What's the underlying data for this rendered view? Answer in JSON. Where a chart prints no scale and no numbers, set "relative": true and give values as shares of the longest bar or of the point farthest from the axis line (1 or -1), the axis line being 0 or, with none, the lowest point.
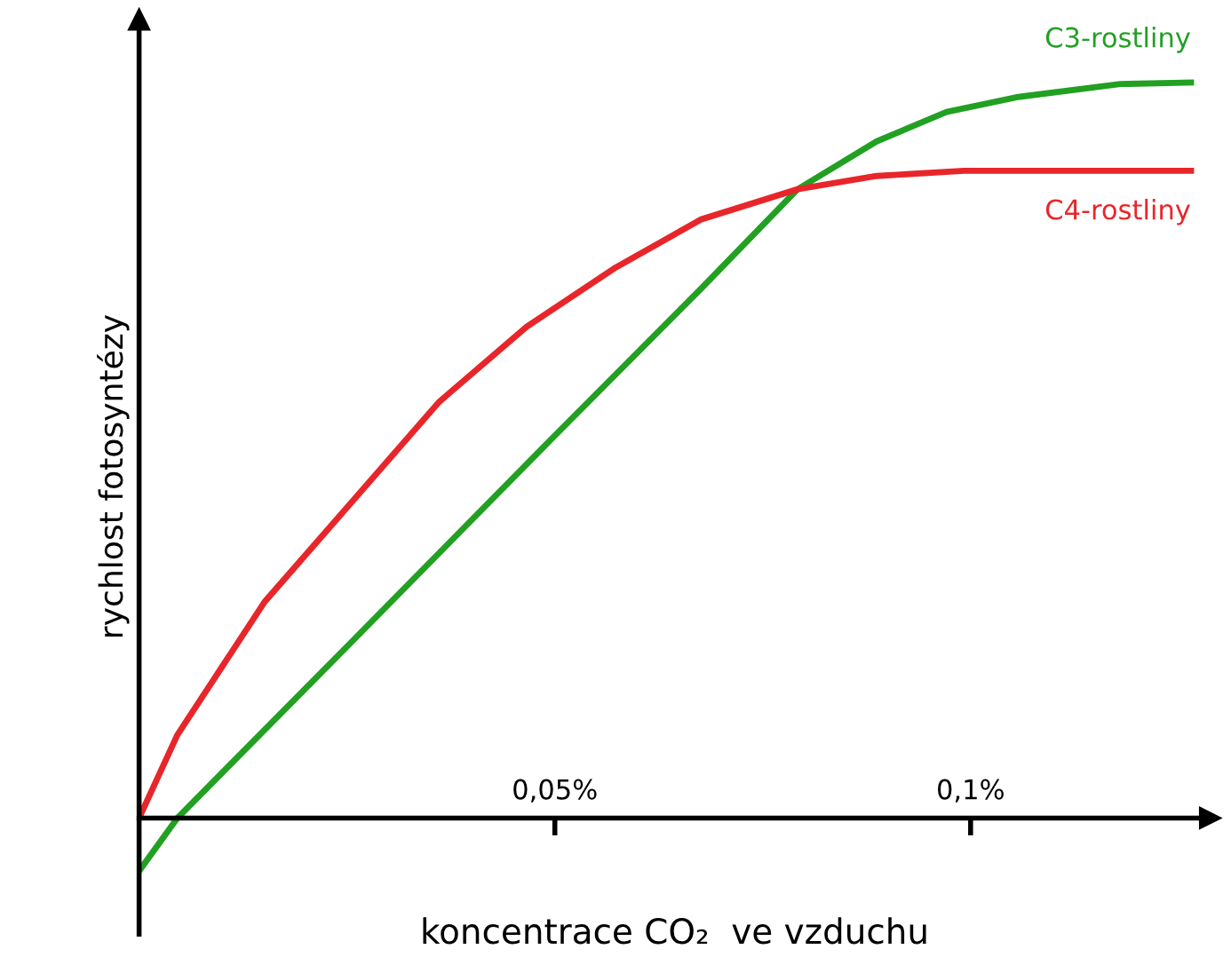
{
  "chart_data": {
    "type": "line",
    "relative": true,
    "ylabel": "rychlost fotosyntézy",
    "xlabel": "koncentrace CO₂  ve vzduchu",
    "xlim": [
      0,
      0.1288
    ],
    "xticks": [
      {
        "value": 0.05,
        "label": "0,05%"
      },
      {
        "value": 0.1,
        "label": "0,1%"
      }
    ],
    "legend": false,
    "grid": false,
    "marker": "none",
    "line_style": "solid",
    "series": [
      {
        "name": "C3-rostliny",
        "color": "#22a022",
        "x": [
          0,
          0.0046,
          0.0256,
          0.05,
          0.0676,
          0.0792,
          0.0887,
          0.0971,
          0.1055,
          0.118,
          0.1265
        ],
        "values": [
          -0.072,
          0,
          0.24,
          0.52,
          0.72,
          0.855,
          0.92,
          0.96,
          0.98,
          0.998,
          1
        ]
      },
      {
        "name": "C4-rostliny",
        "color": "#e8262a",
        "x": [
          0,
          0.0046,
          0.0151,
          0.0256,
          0.0361,
          0.0466,
          0.0571,
          0.0676,
          0.0792,
          0.0887,
          0.0992,
          0.1097,
          0.1265
        ],
        "values": [
          0,
          0.113,
          0.294,
          0.43,
          0.566,
          0.668,
          0.747,
          0.814,
          0.855,
          0.873,
          0.88,
          0.88,
          0.88
        ]
      }
    ]
  }
}
